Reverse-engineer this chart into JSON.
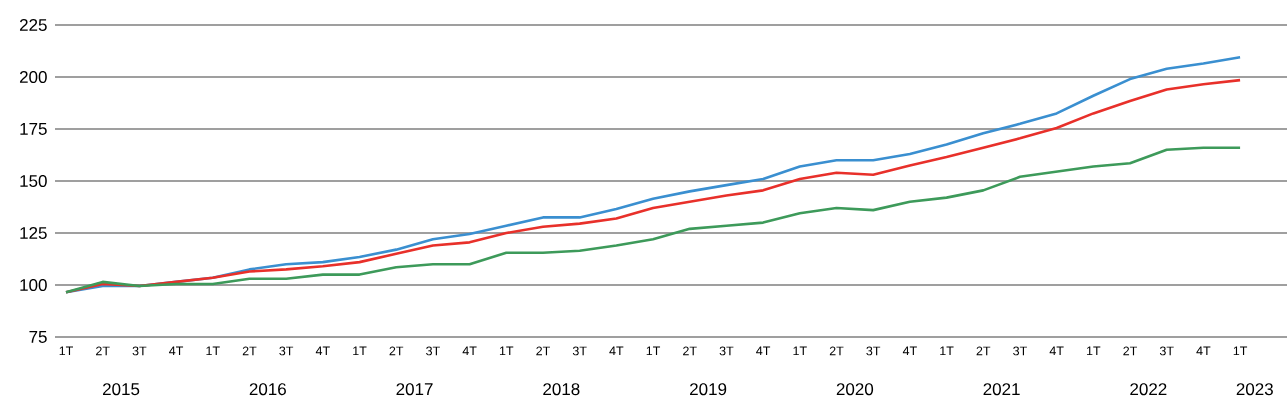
{
  "chart_data": {
    "type": "line",
    "categories": [
      "1T",
      "2T",
      "3T",
      "4T",
      "1T",
      "2T",
      "3T",
      "4T",
      "1T",
      "2T",
      "3T",
      "4T",
      "1T",
      "2T",
      "3T",
      "4T",
      "1T",
      "2T",
      "3T",
      "4T",
      "1T",
      "2T",
      "3T",
      "4T",
      "1T",
      "2T",
      "3T",
      "4T",
      "1T",
      "2T",
      "3T",
      "4T",
      "1T"
    ],
    "series": [
      {
        "color": "#3a8fd0",
        "values": [
          96.5,
          99.5,
          99.5,
          101.5,
          103.5,
          107.5,
          110,
          111,
          113.5,
          117,
          122,
          124.5,
          128.5,
          132.5,
          132.5,
          136.5,
          141.5,
          145,
          148,
          151,
          157,
          160,
          160,
          163,
          167.5,
          173,
          177.5,
          182.5,
          191,
          199,
          204,
          206.5,
          209.5
        ]
      },
      {
        "color": "#e8302a",
        "values": [
          96.5,
          100.5,
          99.5,
          101.5,
          103.5,
          106.5,
          107.5,
          109,
          111,
          115,
          119,
          120.5,
          125,
          128,
          129.5,
          132,
          137,
          140,
          143,
          145.5,
          151,
          154,
          153,
          157.5,
          161.5,
          166,
          170.5,
          175.5,
          182.5,
          188.5,
          194,
          196.5,
          198.5
        ]
      },
      {
        "color": "#3d9a5a",
        "values": [
          96.5,
          101.5,
          99.5,
          100.5,
          100.5,
          103,
          103,
          105,
          105,
          108.5,
          110,
          110,
          115.5,
          115.5,
          116.5,
          119,
          122,
          127,
          128.5,
          130,
          134.5,
          137,
          136,
          140,
          142,
          145.5,
          152,
          154.5,
          157,
          158.5,
          165,
          166,
          166
        ]
      }
    ],
    "annotations": [
      "2015",
      "2016",
      "2017",
      "2018",
      "2019",
      "2020",
      "2021",
      "2022",
      "2023"
    ],
    "ylim": [
      75,
      225
    ],
    "yticks": [
      75,
      100,
      125,
      150,
      175,
      200,
      225
    ],
    "grid": "y",
    "marker": "none",
    "line_style": "solid"
  }
}
